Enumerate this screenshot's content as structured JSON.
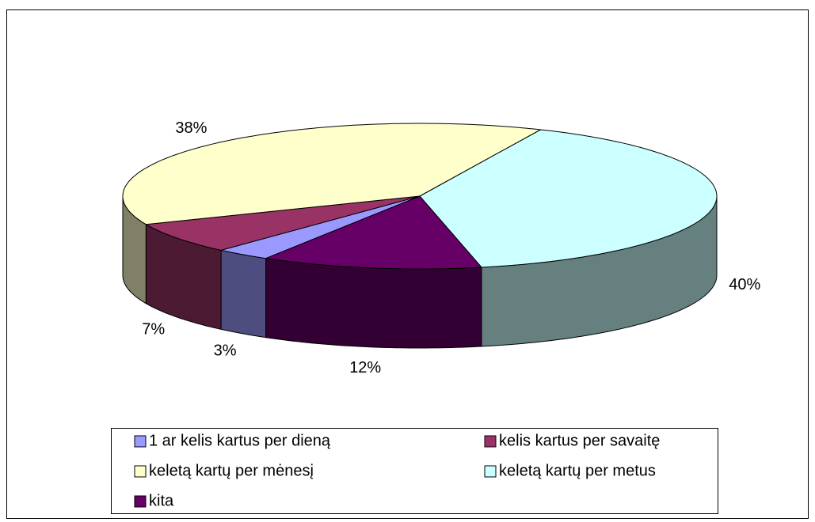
{
  "chart_data": {
    "type": "pie",
    "categories": [
      "1 ar kelis kartus per dieną",
      "kelis kartus per savaitę",
      "keletą kartų per mėnesį",
      "keletą kartų per metus",
      "kita"
    ],
    "values": [
      3,
      7,
      38,
      40,
      12
    ],
    "value_labels": [
      "3%",
      "7%",
      "38%",
      "40%",
      "12%"
    ],
    "colors": [
      "#9999ff",
      "#993366",
      "#ffffcc",
      "#ccffff",
      "#660066"
    ],
    "legend": "bottom"
  }
}
